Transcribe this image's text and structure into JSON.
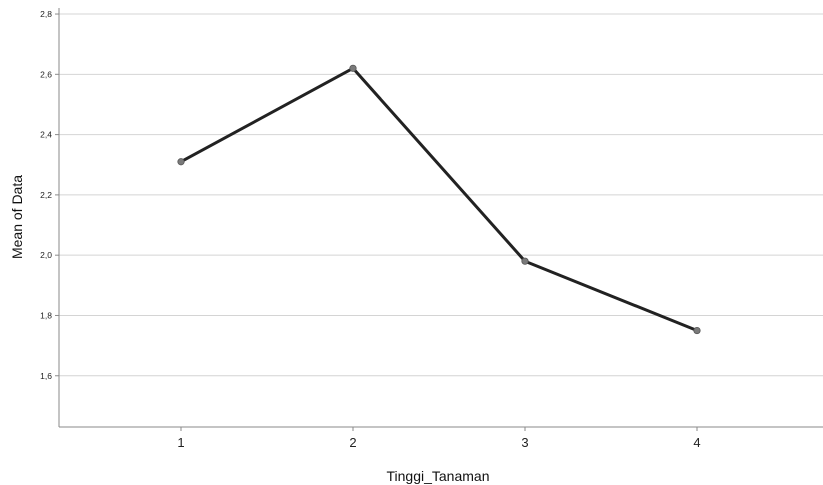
{
  "chart_data": {
    "type": "line",
    "title": "",
    "xlabel": "Tinggi_Tanaman",
    "ylabel": "Mean of Data",
    "categories": [
      "1",
      "2",
      "3",
      "4"
    ],
    "series": [
      {
        "values": [
          2.31,
          2.62,
          1.98,
          1.75
        ]
      }
    ],
    "ylim": [
      1.43,
      2.82
    ],
    "yticks": [
      1.6,
      1.8,
      2.0,
      2.2,
      2.4,
      2.6,
      2.8
    ],
    "ytick_labels": [
      "1,6",
      "1,8",
      "2,0",
      "2,2",
      "2,4",
      "2,6",
      "2,8"
    ],
    "grid": "horizontal",
    "legend": "none",
    "colors": {
      "line": "#222222",
      "marker": "#7a7a7a",
      "grid": "#d4d4d4",
      "axis": "#8a8a8a"
    }
  }
}
